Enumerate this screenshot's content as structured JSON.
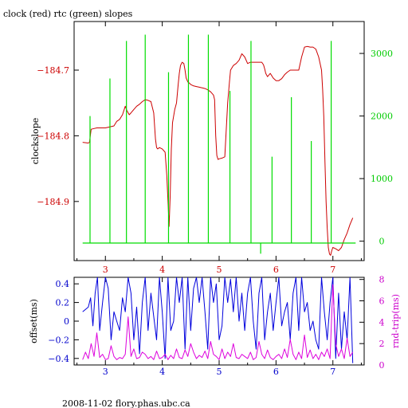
{
  "title": "clock (red) rtc (green) slopes",
  "footer": "2008-11-02 flory.phas.ubc.ca",
  "colors": {
    "clock": "#cc0000",
    "rtc": "#00dd00",
    "offset": "#0000dd",
    "rndtrip": "#dd00dd",
    "axis": "#000000"
  },
  "chart_data": [
    {
      "type": "line",
      "panel": "top",
      "title": "clock (red) rtc (green) slopes",
      "xlabel": "",
      "ylabel": "clockslope",
      "y2label": "",
      "xlim": [
        2.45,
        7.55
      ],
      "ylim": [
        -184.99,
        -184.626
      ],
      "y2lim": [
        -310,
        3510
      ],
      "xticks": [
        3,
        4,
        5,
        6,
        7
      ],
      "yticks": [
        -184.7,
        -184.8,
        -184.9
      ],
      "ytick_labels": [
        "−184.7",
        "−184.8",
        "−184.9"
      ],
      "y2ticks": [
        0,
        1000,
        2000,
        3000
      ],
      "series": [
        {
          "name": "clock",
          "axis": "left",
          "x": [
            2.6,
            2.7,
            2.72,
            2.75,
            2.8,
            2.85,
            3.0,
            3.1,
            3.15,
            3.2,
            3.25,
            3.3,
            3.35,
            3.38,
            3.42,
            3.45,
            3.5,
            3.55,
            3.6,
            3.65,
            3.7,
            3.75,
            3.8,
            3.85,
            3.88,
            3.9,
            3.92,
            3.95,
            4.0,
            4.05,
            4.08,
            4.1,
            4.12,
            4.14,
            4.16,
            4.18,
            4.2,
            4.22,
            4.25,
            4.28,
            4.3,
            4.32,
            4.35,
            4.38,
            4.4,
            4.42,
            4.45,
            4.48,
            4.5,
            4.55,
            4.6,
            4.65,
            4.7,
            4.75,
            4.8,
            4.85,
            4.9,
            4.92,
            4.94,
            4.96,
            4.98,
            5.0,
            5.05,
            5.1,
            5.15,
            5.18,
            5.2,
            5.25,
            5.3,
            5.35,
            5.4,
            5.45,
            5.5,
            5.55,
            5.6,
            5.65,
            5.7,
            5.75,
            5.78,
            5.8,
            5.82,
            5.85,
            5.9,
            5.95,
            6.0,
            6.05,
            6.1,
            6.15,
            6.2,
            6.25,
            6.3,
            6.35,
            6.4,
            6.45,
            6.5,
            6.55,
            6.6,
            6.65,
            6.7,
            6.75,
            6.8,
            6.82,
            6.84,
            6.86,
            6.88,
            6.9,
            6.92,
            6.94,
            6.96,
            6.98,
            7.0,
            7.05,
            7.1,
            7.15,
            7.2,
            7.25,
            7.3,
            7.35
          ],
          "values": [
            -184.81,
            -184.811,
            -184.81,
            -184.79,
            -184.789,
            -184.788,
            -184.788,
            -184.786,
            -184.785,
            -184.778,
            -184.775,
            -184.768,
            -184.755,
            -184.762,
            -184.768,
            -184.765,
            -184.76,
            -184.755,
            -184.752,
            -184.748,
            -184.745,
            -184.746,
            -184.748,
            -184.765,
            -184.805,
            -184.818,
            -184.82,
            -184.818,
            -184.82,
            -184.825,
            -184.86,
            -184.9,
            -184.938,
            -184.89,
            -184.82,
            -184.78,
            -184.77,
            -184.76,
            -184.75,
            -184.722,
            -184.705,
            -184.693,
            -184.688,
            -184.69,
            -184.7,
            -184.712,
            -184.718,
            -184.72,
            -184.722,
            -184.724,
            -184.725,
            -184.726,
            -184.727,
            -184.728,
            -184.73,
            -184.733,
            -184.738,
            -184.745,
            -184.8,
            -184.83,
            -184.836,
            -184.835,
            -184.834,
            -184.832,
            -184.75,
            -184.72,
            -184.7,
            -184.693,
            -184.69,
            -184.685,
            -184.675,
            -184.68,
            -184.69,
            -184.688,
            -184.688,
            -184.688,
            -184.688,
            -184.688,
            -184.692,
            -184.698,
            -184.705,
            -184.71,
            -184.705,
            -184.712,
            -184.716,
            -184.716,
            -184.713,
            -184.707,
            -184.703,
            -184.7,
            -184.7,
            -184.7,
            -184.7,
            -184.68,
            -184.665,
            -184.664,
            -184.665,
            -184.665,
            -184.668,
            -184.68,
            -184.7,
            -184.73,
            -184.77,
            -184.84,
            -184.9,
            -184.94,
            -184.97,
            -184.98,
            -184.982,
            -184.975,
            -184.97,
            -184.972,
            -184.975,
            -184.97,
            -184.958,
            -184.948,
            -184.935,
            -184.925
          ]
        },
        {
          "name": "rtc",
          "axis": "right",
          "baseline": -30,
          "spike_x": [
            2.73,
            3.08,
            3.37,
            3.7,
            4.11,
            4.46,
            4.81,
            5.19,
            5.56,
            5.93,
            6.27,
            6.62,
            6.97
          ],
          "spike_y": [
            2000,
            2600,
            3200,
            3300,
            2700,
            3300,
            3300,
            2400,
            3200,
            1350,
            2300,
            1600,
            3200
          ],
          "dips_x": [
            5.73
          ],
          "dips_y": [
            -200
          ]
        }
      ]
    },
    {
      "type": "line",
      "panel": "bottom",
      "xlabel": "",
      "ylabel": "offset(ms)",
      "y2label": "rnd-trip(ms)",
      "xlim": [
        2.45,
        7.55
      ],
      "ylim": [
        -0.47,
        0.47
      ],
      "y2lim": [
        0,
        8.2
      ],
      "xticks": [
        3,
        4,
        5,
        6,
        7
      ],
      "yticks": [
        0.4,
        0.2,
        0,
        -0.2,
        -0.4
      ],
      "ytick_labels": [
        "0.4",
        "0.2",
        "0",
        "−0.2",
        "−0.4"
      ],
      "y2ticks": [
        0,
        2,
        4,
        6,
        8
      ],
      "series": [
        {
          "name": "offset",
          "axis": "left",
          "x": [
            2.6,
            2.7,
            2.74,
            2.78,
            2.82,
            2.86,
            2.9,
            2.95,
            3.0,
            3.05,
            3.1,
            3.15,
            3.2,
            3.25,
            3.3,
            3.35,
            3.4,
            3.45,
            3.5,
            3.55,
            3.6,
            3.65,
            3.7,
            3.75,
            3.8,
            3.85,
            3.9,
            3.95,
            4.0,
            4.05,
            4.1,
            4.15,
            4.2,
            4.25,
            4.3,
            4.35,
            4.4,
            4.45,
            4.5,
            4.55,
            4.6,
            4.65,
            4.7,
            4.75,
            4.8,
            4.85,
            4.9,
            4.95,
            5.0,
            5.05,
            5.1,
            5.15,
            5.2,
            5.25,
            5.3,
            5.35,
            5.4,
            5.45,
            5.5,
            5.55,
            5.6,
            5.65,
            5.7,
            5.75,
            5.8,
            5.85,
            5.9,
            5.95,
            6.0,
            6.05,
            6.1,
            6.15,
            6.2,
            6.25,
            6.3,
            6.35,
            6.4,
            6.45,
            6.5,
            6.55,
            6.6,
            6.65,
            6.7,
            6.75,
            6.8,
            6.85,
            6.9,
            6.95,
            7.0,
            7.05,
            7.1,
            7.15,
            7.2,
            7.25,
            7.3,
            7.35
          ],
          "values": [
            0.1,
            0.15,
            0.25,
            -0.05,
            0.3,
            0.47,
            -0.1,
            0.2,
            0.47,
            0.35,
            -0.2,
            0.1,
            0.0,
            -0.1,
            0.25,
            0.1,
            0.47,
            0.3,
            -0.2,
            0.15,
            -0.35,
            0.2,
            0.47,
            -0.1,
            0.3,
            0.05,
            -0.2,
            0.47,
            0.1,
            -0.4,
            0.47,
            -0.1,
            0.0,
            0.47,
            0.2,
            0.47,
            -0.3,
            0.47,
            -0.1,
            0.35,
            0.47,
            0.2,
            0.47,
            0.1,
            -0.3,
            0.47,
            0.2,
            0.4,
            -0.2,
            -0.05,
            0.47,
            0.2,
            0.45,
            0.1,
            0.47,
            0.0,
            0.3,
            -0.1,
            0.3,
            0.47,
            0.0,
            -0.3,
            0.3,
            0.47,
            -0.2,
            0.1,
            0.3,
            -0.1,
            0.2,
            0.47,
            -0.05,
            0.1,
            0.2,
            -0.2,
            0.3,
            0.47,
            -0.1,
            0.47,
            0.1,
            0.2,
            -0.1,
            0.0,
            -0.2,
            -0.3,
            0.47,
            0.1,
            -0.2,
            0.2,
            0.47,
            -0.4,
            0.3,
            -0.3,
            0.1,
            -0.2,
            0.47,
            -0.45
          ]
        },
        {
          "name": "rnd-trip",
          "axis": "right",
          "x": [
            2.6,
            2.65,
            2.7,
            2.75,
            2.8,
            2.85,
            2.9,
            2.95,
            3.0,
            3.05,
            3.1,
            3.15,
            3.2,
            3.25,
            3.3,
            3.35,
            3.4,
            3.45,
            3.5,
            3.55,
            3.6,
            3.65,
            3.7,
            3.75,
            3.8,
            3.85,
            3.9,
            3.95,
            4.0,
            4.05,
            4.1,
            4.15,
            4.2,
            4.25,
            4.3,
            4.35,
            4.4,
            4.45,
            4.5,
            4.55,
            4.6,
            4.65,
            4.7,
            4.75,
            4.8,
            4.85,
            4.9,
            4.95,
            5.0,
            5.05,
            5.1,
            5.15,
            5.2,
            5.25,
            5.3,
            5.35,
            5.4,
            5.45,
            5.5,
            5.55,
            5.6,
            5.65,
            5.7,
            5.75,
            5.8,
            5.85,
            5.9,
            5.95,
            6.0,
            6.05,
            6.1,
            6.15,
            6.2,
            6.25,
            6.3,
            6.35,
            6.4,
            6.45,
            6.5,
            6.55,
            6.6,
            6.65,
            6.7,
            6.75,
            6.8,
            6.85,
            6.9,
            6.95,
            7.0,
            7.05,
            7.1,
            7.15,
            7.2,
            7.25,
            7.3,
            7.35
          ],
          "values": [
            0.5,
            1.2,
            0.6,
            2.0,
            0.8,
            3.0,
            0.7,
            1.0,
            0.5,
            0.6,
            1.8,
            0.8,
            0.5,
            0.7,
            0.6,
            1.0,
            4.5,
            0.8,
            1.5,
            0.6,
            0.7,
            1.2,
            1.0,
            0.6,
            0.8,
            0.5,
            1.3,
            0.6,
            0.7,
            1.0,
            0.5,
            0.9,
            0.6,
            1.5,
            0.7,
            0.6,
            1.4,
            0.8,
            2.0,
            1.2,
            0.6,
            0.9,
            0.7,
            1.3,
            0.6,
            2.2,
            1.0,
            0.8,
            0.5,
            1.5,
            0.6,
            1.2,
            0.8,
            2.0,
            0.7,
            0.6,
            1.0,
            0.8,
            0.6,
            1.2,
            0.5,
            0.7,
            2.2,
            1.0,
            0.6,
            1.4,
            0.7,
            0.5,
            0.8,
            1.0,
            0.6,
            1.5,
            0.7,
            2.4,
            1.0,
            0.5,
            1.2,
            0.6,
            2.8,
            0.7,
            1.4,
            0.6,
            1.0,
            0.5,
            1.2,
            0.8,
            1.5,
            0.6,
            7.5,
            2.0,
            0.8,
            1.5,
            0.6,
            2.5,
            0.8,
            1.2
          ]
        }
      ]
    }
  ]
}
